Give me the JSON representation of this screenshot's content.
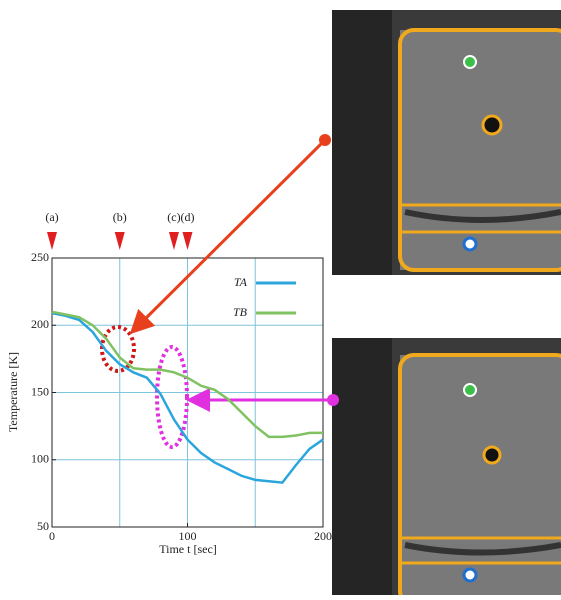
{
  "chart_data": {
    "type": "line",
    "x_label": "Time t [sec]",
    "y_label": "Temperature [K]",
    "x": [
      0,
      10,
      20,
      30,
      40,
      50,
      60,
      70,
      80,
      90,
      100,
      110,
      120,
      130,
      140,
      150,
      160,
      170,
      180,
      190,
      200
    ],
    "series": [
      {
        "name": "TA",
        "color": "#2aa6dc",
        "values": [
          209,
          207,
          204,
          195,
          181,
          171,
          165,
          161,
          149,
          130,
          115,
          105,
          98,
          93,
          88,
          85,
          84,
          83,
          96,
          108,
          115
        ]
      },
      {
        "name": "TB",
        "color": "#80c262",
        "values": [
          210,
          208,
          206,
          200,
          190,
          176,
          168,
          167,
          167,
          165,
          161,
          155,
          152,
          145,
          135,
          125,
          117,
          117,
          118,
          120,
          120
        ]
      }
    ],
    "xlim": [
      0,
      200
    ],
    "ylim": [
      50,
      250
    ],
    "xticks": [
      0,
      100,
      200
    ],
    "yticks": [
      50,
      100,
      150,
      200,
      250
    ],
    "xgrid": [
      50,
      100,
      150
    ],
    "ygrid": [
      100,
      150,
      200
    ],
    "grid": true,
    "markers": [
      {
        "label": "(a)",
        "x": 0
      },
      {
        "label": "(b)",
        "x": 50
      },
      {
        "label": "(c)",
        "x": 90
      },
      {
        "label": "(d)",
        "x": 100
      }
    ]
  }
}
